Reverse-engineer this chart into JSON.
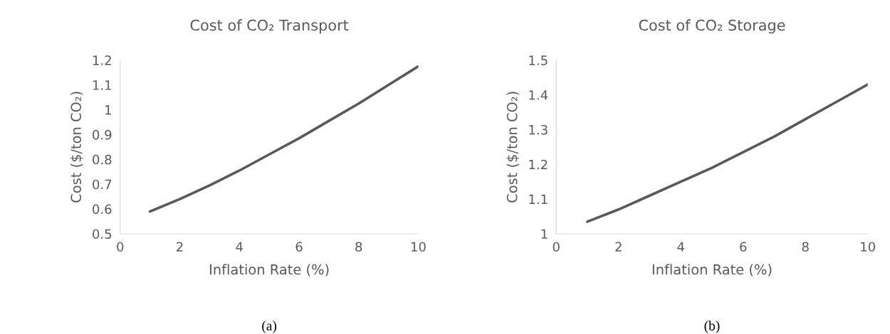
{
  "chart_data": [
    {
      "type": "line",
      "title": "Cost of CO₂ Transport",
      "xlabel": "Inflation Rate (%)",
      "ylabel": "Cost ($/ton CO₂)",
      "x": [
        1,
        2,
        3,
        4,
        5,
        6,
        7,
        8,
        9,
        10
      ],
      "series": [
        {
          "color": "#595959",
          "values": [
            0.59,
            0.64,
            0.695,
            0.755,
            0.82,
            0.885,
            0.955,
            1.025,
            1.1,
            1.175
          ]
        }
      ],
      "xlim": [
        0,
        10
      ],
      "xticks": [
        0,
        2,
        4,
        6,
        8,
        10
      ],
      "ylim": [
        0.5,
        1.2
      ],
      "yticks": [
        0.5,
        0.6,
        0.7,
        0.8,
        0.9,
        1,
        1.1,
        1.2
      ],
      "grid": false,
      "legend": false,
      "annotations": [
        "(a)"
      ]
    },
    {
      "type": "line",
      "title": "Cost of CO₂ Storage",
      "xlabel": "Inflation Rate (%)",
      "ylabel": "Cost ($/ton CO₂)",
      "x": [
        1,
        2,
        3,
        4,
        5,
        6,
        7,
        8,
        9,
        10
      ],
      "series": [
        {
          "color": "#595959",
          "values": [
            1.035,
            1.07,
            1.11,
            1.15,
            1.19,
            1.235,
            1.28,
            1.33,
            1.38,
            1.43
          ]
        }
      ],
      "xlim": [
        0,
        10
      ],
      "xticks": [
        0,
        2,
        4,
        6,
        8,
        10
      ],
      "ylim": [
        1,
        1.5
      ],
      "yticks": [
        1,
        1.1,
        1.2,
        1.3,
        1.4,
        1.5
      ],
      "grid": false,
      "legend": false,
      "annotations": [
        "(b)"
      ]
    }
  ]
}
